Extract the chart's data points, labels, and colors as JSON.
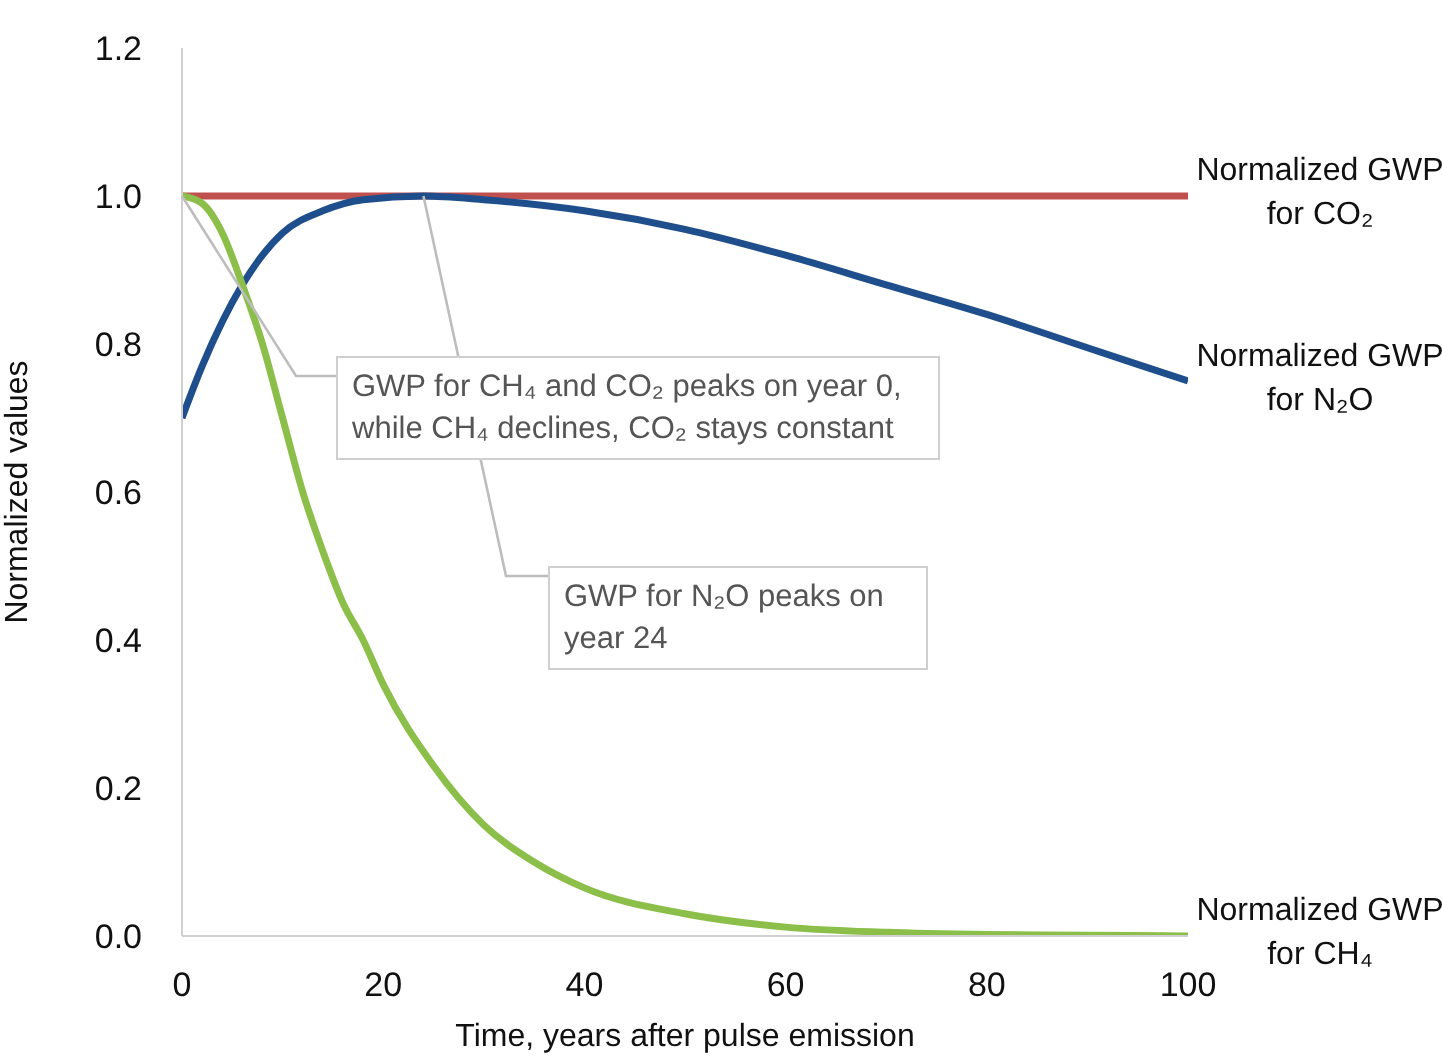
{
  "chart_data": {
    "type": "line",
    "xlabel": "Time, years after pulse emission",
    "ylabel": "Normalized values",
    "xlim": [
      0,
      100
    ],
    "ylim": [
      0,
      1.2
    ],
    "xticks": [
      0,
      20,
      40,
      60,
      80,
      100
    ],
    "yticks": [
      {
        "value": 0,
        "label": "0.0"
      },
      0.2,
      0.4,
      0.6,
      0.8,
      {
        "value": 1,
        "label": "1.0"
      },
      1.2
    ],
    "line_style": "solid",
    "series": [
      {
        "name": "Normalized GWP for CO₂",
        "color": "#c0504d",
        "x": [
          0,
          100
        ],
        "values": [
          1.0,
          1.0
        ]
      },
      {
        "name": "Normalized GWP for N₂O",
        "color": "#1f4e8c",
        "x": [
          0,
          2,
          4,
          6,
          8,
          10,
          14,
          18,
          24,
          30,
          40,
          50,
          60,
          70,
          80,
          90,
          100
        ],
        "values": [
          0.7,
          0.77,
          0.83,
          0.88,
          0.92,
          0.95,
          0.98,
          0.995,
          1.0,
          0.995,
          0.98,
          0.955,
          0.92,
          0.88,
          0.84,
          0.795,
          0.75
        ]
      },
      {
        "name": "Normalized GWP for CH₄",
        "color": "#8cbf4a",
        "x": [
          0,
          2,
          4,
          6,
          8,
          10,
          12,
          14,
          16,
          18,
          20,
          25,
          30,
          35,
          40,
          50,
          60,
          70,
          80,
          90,
          100
        ],
        "values": [
          1.0,
          0.99,
          0.95,
          0.88,
          0.8,
          0.7,
          0.6,
          0.52,
          0.45,
          0.4,
          0.34,
          0.23,
          0.15,
          0.1,
          0.065,
          0.03,
          0.012,
          0.005,
          0.002,
          0.001,
          0.0
        ]
      }
    ],
    "annotations": [
      {
        "text": "GWP for CH₄ and CO₂ peaks on year 0, while CH₄ declines, CO₂ stays constant",
        "x": 0,
        "y": 1.0
      },
      {
        "text": "GWP for N₂O peaks on year 24",
        "x": 24,
        "y": 1.0
      }
    ]
  }
}
